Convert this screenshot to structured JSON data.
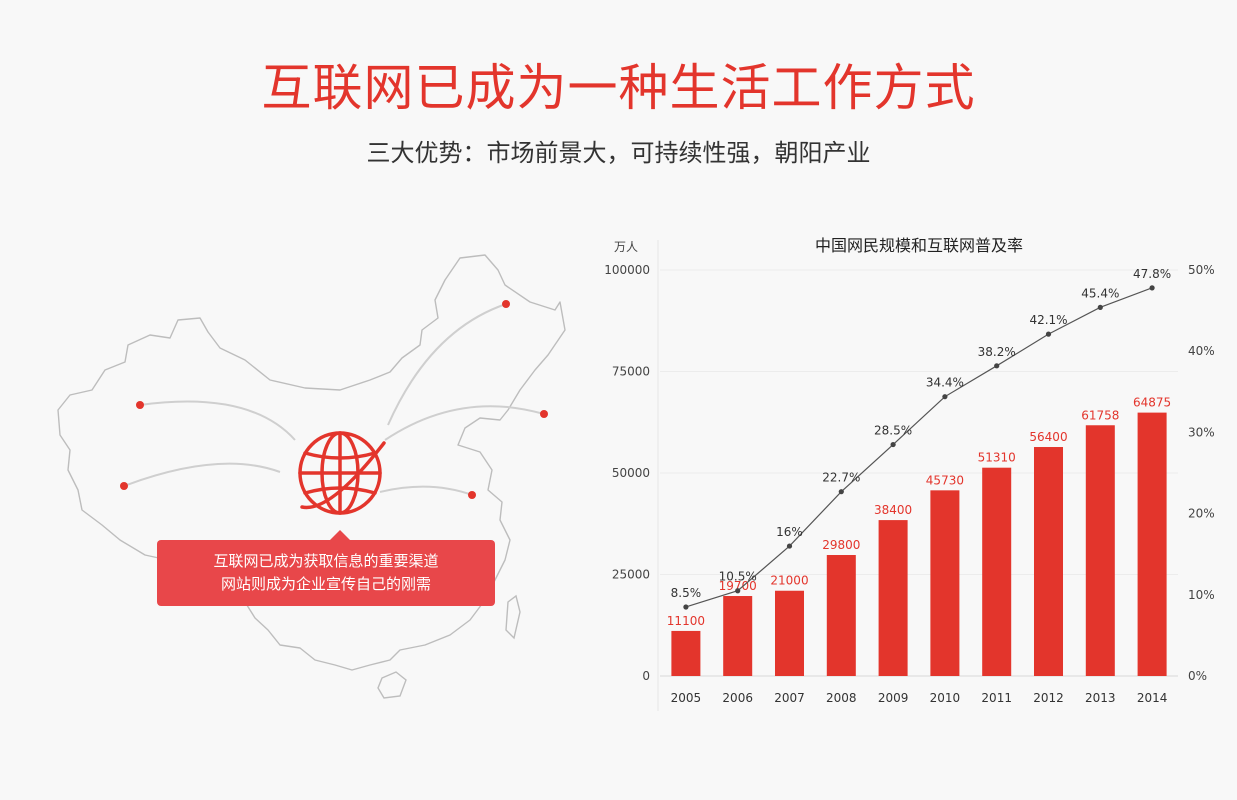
{
  "header": {
    "title": "互联网已成为一种生活工作方式",
    "subtitle": "三大优势：市场前景大，可持续性强，朝阳产业"
  },
  "callout": {
    "line1": "互联网已成为获取信息的重要渠道",
    "line2": "网站则成为企业宣传自己的刚需"
  },
  "colors": {
    "accent": "#e3352c",
    "callout_bg": "#e8474a",
    "line": "#555555",
    "map_outline": "#bbbbbb"
  },
  "icons": {
    "globe": "globe-icon",
    "map": "china-map-outline"
  },
  "chart_data": {
    "type": "bar",
    "title": "中国网民规模和互联网普及率",
    "ylabel": "万人",
    "categories": [
      "2005",
      "2006",
      "2007",
      "2008",
      "2009",
      "2010",
      "2011",
      "2012",
      "2013",
      "2014"
    ],
    "series": [
      {
        "type": "bar",
        "values": [
          11100,
          19700,
          21000,
          29800,
          38400,
          45730,
          51310,
          56400,
          61758,
          64875
        ],
        "labels": [
          "11100",
          "19700",
          "21000",
          "29800",
          "38400",
          "45730",
          "51310",
          "56400",
          "61758",
          "64875"
        ]
      },
      {
        "type": "line",
        "axis": "right",
        "values": [
          8.5,
          10.5,
          16,
          22.7,
          28.5,
          34.4,
          38.2,
          42.1,
          45.4,
          47.8
        ],
        "labels": [
          "8.5%",
          "10.5%",
          "16%",
          "22.7%",
          "28.5%",
          "34.4%",
          "38.2%",
          "42.1%",
          "45.4%",
          "47.8%"
        ]
      }
    ],
    "ylim": [
      0,
      100000
    ],
    "yticks": [
      "0",
      "25000",
      "50000",
      "75000",
      "100000"
    ],
    "y2lim": [
      0,
      50
    ],
    "y2ticks": [
      "0%",
      "10%",
      "20%",
      "30%",
      "40%",
      "50%"
    ],
    "grid": true,
    "legend": "none"
  }
}
